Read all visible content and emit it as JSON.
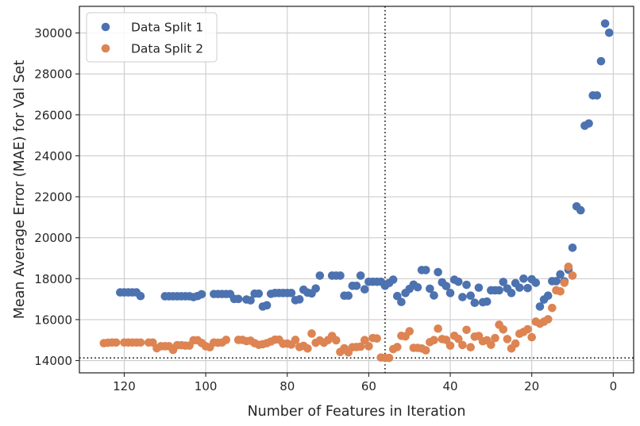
{
  "chart_data": {
    "type": "scatter",
    "xlabel": "Number of Features in Iteration",
    "ylabel": "Mean Average Error (MAE) for Val Set",
    "xlim": [
      131,
      -5
    ],
    "ylim": [
      13400,
      31300
    ],
    "x_ticks": [
      120,
      100,
      80,
      60,
      40,
      20,
      0
    ],
    "y_ticks": [
      14000,
      16000,
      18000,
      20000,
      22000,
      24000,
      26000,
      28000,
      30000
    ],
    "grid": true,
    "legend": "top-left",
    "reference_lines": {
      "vertical_x": 56,
      "horizontal_y": 14130,
      "style": "dotted"
    },
    "series": [
      {
        "name": "Data Split 1",
        "color": "#4c72b0",
        "points": [
          [
            121,
            17330
          ],
          [
            120,
            17330
          ],
          [
            119,
            17330
          ],
          [
            118,
            17330
          ],
          [
            117,
            17330
          ],
          [
            116,
            17150
          ],
          [
            110,
            17140
          ],
          [
            109,
            17140
          ],
          [
            108,
            17140
          ],
          [
            107,
            17140
          ],
          [
            106,
            17140
          ],
          [
            105,
            17140
          ],
          [
            104,
            17140
          ],
          [
            103,
            17100
          ],
          [
            102,
            17150
          ],
          [
            101,
            17240
          ],
          [
            98,
            17250
          ],
          [
            97,
            17250
          ],
          [
            96,
            17250
          ],
          [
            95,
            17250
          ],
          [
            94,
            17250
          ],
          [
            93,
            17010
          ],
          [
            92,
            17010
          ],
          [
            90,
            16980
          ],
          [
            89,
            16940
          ],
          [
            88,
            17270
          ],
          [
            87,
            17270
          ],
          [
            86,
            16640
          ],
          [
            85,
            16700
          ],
          [
            84,
            17260
          ],
          [
            83,
            17300
          ],
          [
            82,
            17300
          ],
          [
            81,
            17300
          ],
          [
            80,
            17300
          ],
          [
            79,
            17300
          ],
          [
            78,
            16950
          ],
          [
            77,
            16990
          ],
          [
            76,
            17460
          ],
          [
            75,
            17320
          ],
          [
            74,
            17280
          ],
          [
            73,
            17520
          ],
          [
            72,
            18150
          ],
          [
            69,
            18150
          ],
          [
            68,
            18150
          ],
          [
            67,
            18150
          ],
          [
            66,
            17170
          ],
          [
            65,
            17170
          ],
          [
            64,
            17650
          ],
          [
            63,
            17650
          ],
          [
            62,
            18150
          ],
          [
            61,
            17480
          ],
          [
            60,
            17850
          ],
          [
            59,
            17850
          ],
          [
            58,
            17850
          ],
          [
            57,
            17850
          ],
          [
            56,
            17650
          ],
          [
            55,
            17790
          ],
          [
            54,
            17950
          ],
          [
            53,
            17150
          ],
          [
            52,
            16860
          ],
          [
            51,
            17300
          ],
          [
            50,
            17500
          ],
          [
            49,
            17710
          ],
          [
            48,
            17580
          ],
          [
            47,
            18420
          ],
          [
            46,
            18420
          ],
          [
            45,
            17510
          ],
          [
            44,
            17180
          ],
          [
            43,
            18320
          ],
          [
            42,
            17820
          ],
          [
            41,
            17640
          ],
          [
            40,
            17300
          ],
          [
            39,
            17950
          ],
          [
            38,
            17850
          ],
          [
            37,
            17100
          ],
          [
            36,
            17700
          ],
          [
            35,
            17170
          ],
          [
            34,
            16820
          ],
          [
            33,
            17560
          ],
          [
            32,
            16850
          ],
          [
            31,
            16880
          ],
          [
            30,
            17430
          ],
          [
            29,
            17430
          ],
          [
            28,
            17430
          ],
          [
            27,
            17840
          ],
          [
            26,
            17520
          ],
          [
            25,
            17300
          ],
          [
            24,
            17780
          ],
          [
            23,
            17560
          ],
          [
            22,
            18000
          ],
          [
            21,
            17540
          ],
          [
            20,
            17970
          ],
          [
            19,
            17800
          ],
          [
            18,
            16640
          ],
          [
            17,
            16980
          ],
          [
            16,
            17170
          ],
          [
            15,
            17880
          ],
          [
            14,
            17880
          ],
          [
            13,
            18210
          ],
          [
            12,
            17870
          ],
          [
            11,
            18440
          ],
          [
            10,
            19510
          ],
          [
            9,
            21530
          ],
          [
            8,
            21340
          ],
          [
            7,
            25470
          ],
          [
            6,
            25580
          ],
          [
            5,
            26950
          ],
          [
            4,
            26950
          ],
          [
            3,
            28620
          ],
          [
            2,
            30460
          ],
          [
            1,
            30010
          ]
        ]
      },
      {
        "name": "Data Split 2",
        "color": "#dd8452",
        "points": [
          [
            125,
            14850
          ],
          [
            124,
            14870
          ],
          [
            123,
            14880
          ],
          [
            122,
            14880
          ],
          [
            120,
            14880
          ],
          [
            119,
            14880
          ],
          [
            118,
            14880
          ],
          [
            117,
            14880
          ],
          [
            116,
            14880
          ],
          [
            114,
            14880
          ],
          [
            113,
            14880
          ],
          [
            112,
            14600
          ],
          [
            111,
            14700
          ],
          [
            110,
            14700
          ],
          [
            109,
            14700
          ],
          [
            108,
            14520
          ],
          [
            107,
            14750
          ],
          [
            106,
            14750
          ],
          [
            105,
            14730
          ],
          [
            104,
            14730
          ],
          [
            103,
            14990
          ],
          [
            102,
            14990
          ],
          [
            101,
            14860
          ],
          [
            100,
            14700
          ],
          [
            99,
            14650
          ],
          [
            98,
            14880
          ],
          [
            97,
            14870
          ],
          [
            96,
            14880
          ],
          [
            95,
            15010
          ],
          [
            92,
            15010
          ],
          [
            91,
            15010
          ],
          [
            90,
            14950
          ],
          [
            89,
            14970
          ],
          [
            88,
            14850
          ],
          [
            87,
            14770
          ],
          [
            86,
            14800
          ],
          [
            85,
            14850
          ],
          [
            84,
            14930
          ],
          [
            83,
            15020
          ],
          [
            82,
            15020
          ],
          [
            81,
            14820
          ],
          [
            80,
            14830
          ],
          [
            79,
            14780
          ],
          [
            78,
            15010
          ],
          [
            77,
            14660
          ],
          [
            76,
            14720
          ],
          [
            75,
            14590
          ],
          [
            74,
            15320
          ],
          [
            73,
            14870
          ],
          [
            72,
            14980
          ],
          [
            71,
            14870
          ],
          [
            70,
            15000
          ],
          [
            69,
            15200
          ],
          [
            68,
            14990
          ],
          [
            67,
            14420
          ],
          [
            66,
            14600
          ],
          [
            65,
            14400
          ],
          [
            64,
            14650
          ],
          [
            63,
            14660
          ],
          [
            62,
            14680
          ],
          [
            61,
            15000
          ],
          [
            60,
            14700
          ],
          [
            59,
            15100
          ],
          [
            58,
            15080
          ],
          [
            57,
            14150
          ],
          [
            56,
            14130
          ],
          [
            55,
            14130
          ],
          [
            54,
            14560
          ],
          [
            53,
            14660
          ],
          [
            52,
            15210
          ],
          [
            51,
            15180
          ],
          [
            50,
            15430
          ],
          [
            49,
            14620
          ],
          [
            48,
            14620
          ],
          [
            47,
            14590
          ],
          [
            46,
            14500
          ],
          [
            45,
            14900
          ],
          [
            44,
            15000
          ],
          [
            43,
            15560
          ],
          [
            42,
            15050
          ],
          [
            41,
            15010
          ],
          [
            40,
            14730
          ],
          [
            39,
            15210
          ],
          [
            38,
            15060
          ],
          [
            37,
            14760
          ],
          [
            36,
            15500
          ],
          [
            35,
            14650
          ],
          [
            34,
            15170
          ],
          [
            33,
            15200
          ],
          [
            32,
            14940
          ],
          [
            31,
            14990
          ],
          [
            30,
            14770
          ],
          [
            29,
            15100
          ],
          [
            28,
            15750
          ],
          [
            27,
            15520
          ],
          [
            26,
            15050
          ],
          [
            25,
            14590
          ],
          [
            24,
            14830
          ],
          [
            23,
            15310
          ],
          [
            22,
            15400
          ],
          [
            21,
            15530
          ],
          [
            20,
            15140
          ],
          [
            19,
            15900
          ],
          [
            18,
            15800
          ],
          [
            17,
            15900
          ],
          [
            16,
            16020
          ],
          [
            15,
            16570
          ],
          [
            14,
            17430
          ],
          [
            13,
            17380
          ],
          [
            12,
            17800
          ],
          [
            11,
            18580
          ],
          [
            10,
            18150
          ]
        ]
      }
    ]
  }
}
